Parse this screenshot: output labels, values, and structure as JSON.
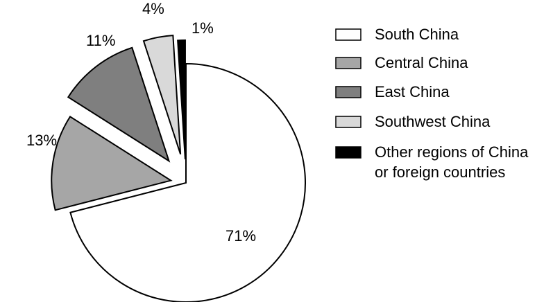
{
  "chart_data": {
    "type": "pie",
    "exploded": true,
    "title": "",
    "slices": [
      {
        "label": "South China",
        "value": 71,
        "display": "71%",
        "color": "#ffffff"
      },
      {
        "label": "Central China",
        "value": 13,
        "display": "13%",
        "color": "#a6a6a6"
      },
      {
        "label": "East China",
        "value": 11,
        "display": "11%",
        "color": "#7f7f7f"
      },
      {
        "label": "Southwest China",
        "value": 4,
        "display": "4%",
        "color": "#d9d9d9"
      },
      {
        "label": "Other regions of China or foreign countries",
        "display": "1%",
        "value": 1,
        "color": "#000000"
      }
    ],
    "legend": {
      "position": "right",
      "entries": [
        {
          "lines": [
            "South China"
          ]
        },
        {
          "lines": [
            "Central China"
          ]
        },
        {
          "lines": [
            "East China"
          ]
        },
        {
          "lines": [
            "Southwest China"
          ]
        },
        {
          "lines": [
            "Other regions of China",
            " or foreign countries"
          ]
        }
      ]
    }
  }
}
